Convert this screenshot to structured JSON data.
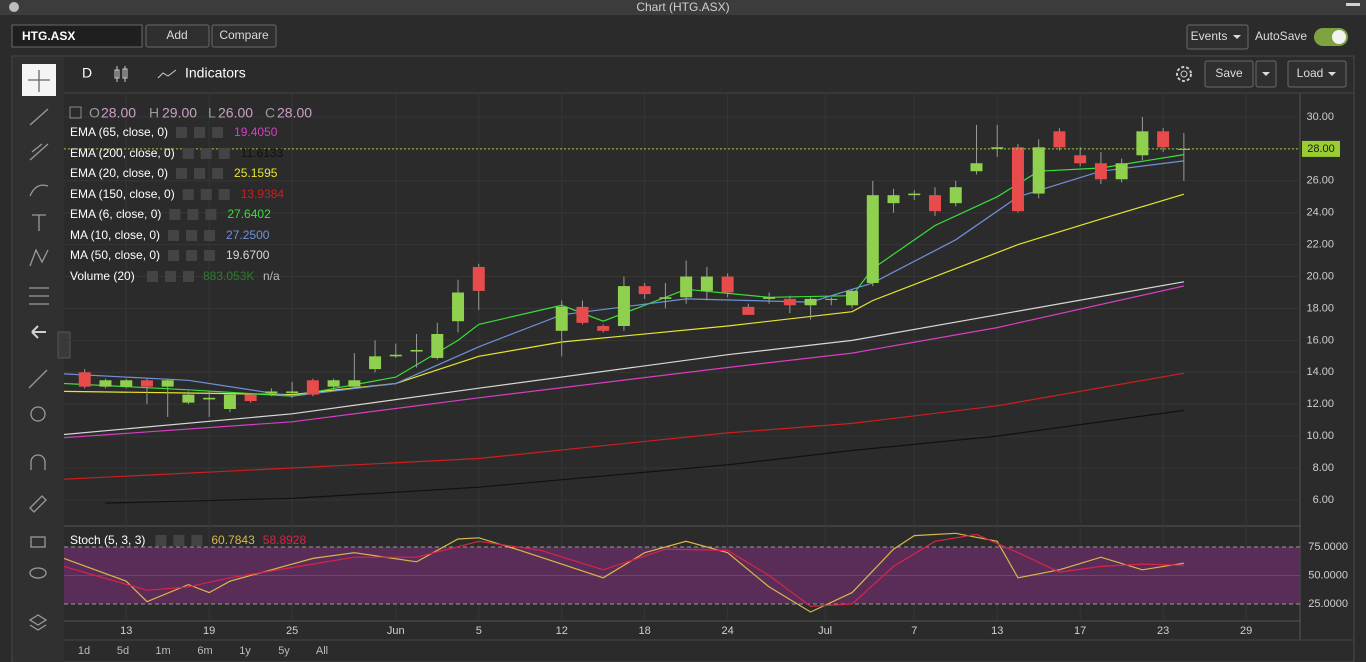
{
  "window_title": "Chart (HTG.ASX)",
  "toolbar": {
    "symbol": "HTG.ASX",
    "add": "Add",
    "compare": "Compare",
    "events": "Events",
    "autosave": "AutoSave"
  },
  "chart_header": {
    "period": "D",
    "indicators": "Indicators",
    "save": "Save",
    "load": "Load"
  },
  "ohlc": {
    "o_label": "O",
    "o": "28.00",
    "h_label": "H",
    "h": "29.00",
    "l_label": "L",
    "l": "26.00",
    "c_label": "C",
    "c": "28.00"
  },
  "volume_legend": {
    "name": "Volume (20)",
    "value": "883.053K",
    "extra": "n/a"
  },
  "ranges": [
    "1d",
    "5d",
    "1m",
    "6m",
    "1y",
    "5y",
    "All"
  ],
  "chart_data": [
    {
      "type": "candlestick",
      "open": [
        14.0,
        13.1,
        13.1,
        13.5,
        13.1,
        12.1,
        12.3,
        11.7,
        12.6,
        12.7,
        12.7,
        13.5,
        13.1,
        13.1,
        14.2,
        15.0,
        15.3,
        14.9,
        17.2,
        20.6,
        null,
        null,
        null,
        16.6,
        18.1,
        16.9,
        16.9,
        19.4,
        18.6,
        18.7,
        19.1,
        20.0,
        18.1,
        18.6,
        18.6,
        18.2,
        18.6,
        18.2,
        19.6,
        24.6,
        25.1,
        25.1,
        24.6,
        26.6,
        28.0,
        28.1,
        25.2,
        29.1,
        27.6,
        27.1,
        26.1,
        27.6,
        29.1,
        28.0
      ],
      "high": [
        14.2,
        13.6,
        13.6,
        13.6,
        13.6,
        12.8,
        12.8,
        12.7,
        12.7,
        13.0,
        13.4,
        13.6,
        13.6,
        15.2,
        16.0,
        15.8,
        16.4,
        17.1,
        19.8,
        20.8,
        null,
        null,
        null,
        18.5,
        18.5,
        17.0,
        20.0,
        19.6,
        19.6,
        21.0,
        20.6,
        20.2,
        18.3,
        19.0,
        18.8,
        18.7,
        18.7,
        19.2,
        26.0,
        25.5,
        25.4,
        25.6,
        26.0,
        29.5,
        29.5,
        28.3,
        28.6,
        29.3,
        28.1,
        27.8,
        27.4,
        30.0,
        29.3,
        29.0
      ],
      "low": [
        13.0,
        13.0,
        13.0,
        12.0,
        11.2,
        12.0,
        11.2,
        11.5,
        12.1,
        12.5,
        12.4,
        12.5,
        13.0,
        13.0,
        14.0,
        14.9,
        14.3,
        14.8,
        16.5,
        17.9,
        null,
        null,
        null,
        15.0,
        17.0,
        16.5,
        16.6,
        18.6,
        18.0,
        18.3,
        18.5,
        18.7,
        17.6,
        18.3,
        17.7,
        17.3,
        18.2,
        18.0,
        19.4,
        24.0,
        24.8,
        23.8,
        24.4,
        26.4,
        27.5,
        24.0,
        24.9,
        27.9,
        26.9,
        25.8,
        25.9,
        27.3,
        27.8,
        26.0
      ],
      "close": [
        13.1,
        13.5,
        13.5,
        13.1,
        13.5,
        12.6,
        12.4,
        12.6,
        12.2,
        12.8,
        12.8,
        12.6,
        13.5,
        13.5,
        15.0,
        15.1,
        15.4,
        16.4,
        19.0,
        19.1,
        null,
        null,
        null,
        18.1,
        17.1,
        16.6,
        19.4,
        18.9,
        18.7,
        20.0,
        20.0,
        19.0,
        17.6,
        18.7,
        18.2,
        18.6,
        18.6,
        19.1,
        25.1,
        25.1,
        25.2,
        24.1,
        25.6,
        27.1,
        28.1,
        24.1,
        28.1,
        28.1,
        27.1,
        26.1,
        27.1,
        29.1,
        28.1,
        28.0
      ],
      "up_color": "#8fd14f",
      "down_color": "#e84b4b",
      "xlim": [
        -1,
        58.6
      ],
      "xticks": [
        {
          "value": 2,
          "label": "13"
        },
        {
          "value": 6,
          "label": "19"
        },
        {
          "value": 10,
          "label": "25"
        },
        {
          "value": 15,
          "label": "Jun"
        },
        {
          "value": 19,
          "label": "5"
        },
        {
          "value": 23,
          "label": "12"
        },
        {
          "value": 27,
          "label": "18"
        },
        {
          "value": 31,
          "label": "24"
        },
        {
          "value": 35.7,
          "label": "Jul"
        },
        {
          "value": 40,
          "label": "7"
        },
        {
          "value": 44,
          "label": "13"
        },
        {
          "value": 48,
          "label": "17"
        },
        {
          "value": 52,
          "label": "23"
        },
        {
          "value": 56,
          "label": "29"
        }
      ],
      "ylim": [
        4.43,
        31.44
      ],
      "yticks": [
        {
          "value": 6,
          "label": "6.00"
        },
        {
          "value": 8,
          "label": "8.00"
        },
        {
          "value": 10,
          "label": "10.00"
        },
        {
          "value": 12,
          "label": "12.00"
        },
        {
          "value": 14,
          "label": "14.00"
        },
        {
          "value": 16,
          "label": "16.00"
        },
        {
          "value": 18,
          "label": "18.00"
        },
        {
          "value": 20,
          "label": "20.00"
        },
        {
          "value": 22,
          "label": "22.00"
        },
        {
          "value": 24,
          "label": "24.00"
        },
        {
          "value": 26,
          "label": "26.00"
        },
        {
          "value": 28,
          "label": "28.00"
        },
        {
          "value": 30,
          "label": "30.00"
        }
      ],
      "grid": true,
      "last_price": {
        "value": 28,
        "label": "28.00",
        "color": "#9acd32"
      },
      "series": [
        {
          "name": "EMA (65, close, 0)",
          "color": "#d63fc4",
          "value_label": "19.4050",
          "x": [
            -1,
            10,
            19,
            31,
            37,
            44,
            53
          ],
          "values": [
            9.9,
            10.9,
            12.4,
            14.3,
            15.2,
            16.8,
            19.405
          ]
        },
        {
          "name": "EMA (200, close, 0)",
          "color": "#111111",
          "value_label": "11.6133",
          "x": [
            1,
            10,
            19,
            31,
            37,
            44,
            53
          ],
          "values": [
            5.8,
            6.1,
            6.8,
            8.2,
            9.1,
            10.0,
            11.61
          ]
        },
        {
          "name": "EMA (20, close, 0)",
          "color": "#e6e62e",
          "value_label": "25.1595",
          "x": [
            -1,
            5,
            10,
            15,
            19,
            23,
            31,
            37,
            38,
            42,
            45,
            49,
            53
          ],
          "values": [
            12.8,
            12.7,
            12.6,
            13.3,
            15.0,
            15.9,
            16.9,
            17.8,
            18.5,
            20.5,
            22.0,
            23.6,
            25.16
          ]
        },
        {
          "name": "EMA (150, close, 0)",
          "color": "#cc1f1f",
          "value_label": "13.9384",
          "x": [
            -1,
            10,
            19,
            31,
            37,
            44,
            53
          ],
          "values": [
            7.3,
            8.0,
            8.6,
            10.2,
            10.8,
            11.9,
            13.94
          ]
        },
        {
          "name": "EMA (6, close, 0)",
          "color": "#3adf3a",
          "value_label": "27.6402",
          "x": [
            -1,
            5,
            10,
            15,
            18,
            19,
            23,
            25,
            29,
            33,
            37,
            38,
            41,
            44,
            46,
            49,
            53
          ],
          "values": [
            13.3,
            12.9,
            12.5,
            13.7,
            16.0,
            17.0,
            18.2,
            17.2,
            19.2,
            18.7,
            18.8,
            20.5,
            23.2,
            25.0,
            26.6,
            26.8,
            27.64
          ]
        },
        {
          "name": "MA (10, close, 0)",
          "color": "#6f92d8",
          "value_label": "27.2500",
          "x": [
            -1,
            5,
            10,
            15,
            19,
            23,
            29,
            35,
            38,
            42,
            45,
            49,
            53
          ],
          "values": [
            13.9,
            13.5,
            12.5,
            13.3,
            15.6,
            17.6,
            18.6,
            18.4,
            19.6,
            22.3,
            25.0,
            26.6,
            27.25
          ]
        },
        {
          "name": "MA (50, close, 0)",
          "color": "#d8d8d8",
          "value_label": "19.6700",
          "x": [
            -1,
            10,
            19,
            31,
            37,
            44,
            53
          ],
          "values": [
            10.1,
            11.4,
            13.0,
            15.1,
            16.0,
            17.6,
            19.67
          ]
        }
      ]
    },
    {
      "type": "line",
      "title": "Stoch (5, 3, 3)",
      "xlim": [
        -1,
        58.6
      ],
      "ylim": [
        10.1,
        92.5
      ],
      "yticks": [
        {
          "value": 75,
          "label": "75.0000"
        },
        {
          "value": 50,
          "label": "50.0000"
        },
        {
          "value": 25,
          "label": "25.0000"
        }
      ],
      "band": [
        25,
        75
      ],
      "band_color": "#5a2c58",
      "series": [
        {
          "color": "#d8b84a",
          "value_label": "60.7843",
          "x": [
            -1,
            2,
            3,
            5,
            6,
            7,
            9,
            11,
            13,
            16,
            18,
            19,
            21,
            23,
            25,
            27,
            29,
            31,
            33,
            35,
            37,
            39,
            40,
            42,
            44,
            45,
            47,
            49,
            51,
            53
          ],
          "values": [
            65,
            45,
            27,
            42,
            35,
            45,
            55,
            65,
            70,
            62,
            82,
            83,
            72,
            60,
            48,
            70,
            80,
            70,
            40,
            18,
            35,
            73,
            85,
            87,
            80,
            48,
            55,
            66,
            55,
            60.78
          ]
        },
        {
          "color": "#d9234b",
          "value_label": "58.8928",
          "x": [
            -1,
            3,
            5,
            7,
            10,
            13,
            16,
            19,
            22,
            25,
            28,
            31,
            33,
            35,
            37,
            39,
            41,
            43,
            45,
            47,
            49,
            51,
            53
          ],
          "values": [
            58,
            37,
            40,
            48,
            57,
            66,
            66,
            80,
            72,
            55,
            73,
            72,
            50,
            23,
            25,
            58,
            80,
            86,
            70,
            53,
            58,
            60,
            58.89
          ]
        }
      ]
    }
  ]
}
